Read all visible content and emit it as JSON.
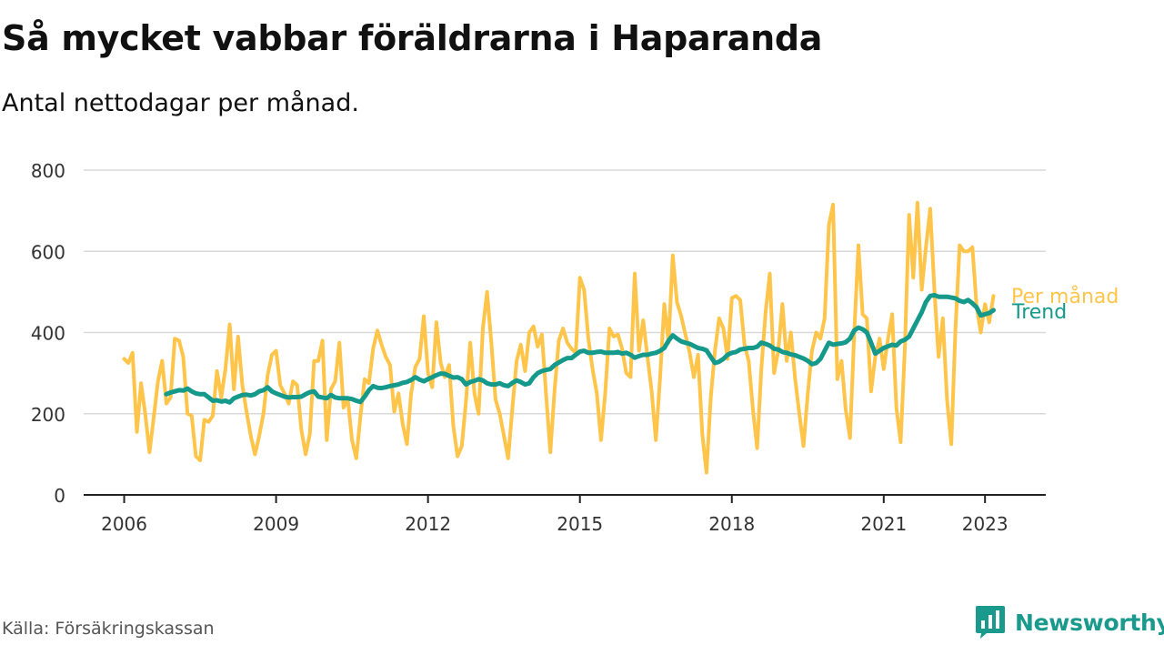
{
  "header": {
    "title": "Så mycket vabbar föräldrarna i Haparanda",
    "subtitle": "Antal nettodagar per månad."
  },
  "footer": {
    "source": "Källa: Försäkringskassan",
    "brand": "Newsworthy"
  },
  "colors": {
    "monthly": "#ffc54a",
    "trend": "#14998b",
    "grid": "#d9d9d9",
    "axis": "#222222",
    "brand": "#1a9a8c"
  },
  "icons": {
    "brand_logo": "bar-chart-speech-bubble-icon"
  },
  "chart_data": {
    "type": "line",
    "xlabel": "",
    "ylabel": "",
    "xlim": [
      2005.2,
      2024.2
    ],
    "ylim": [
      0,
      800
    ],
    "yticks": [
      0,
      200,
      400,
      600,
      800
    ],
    "yticklabels": [
      "0",
      "200",
      "400",
      "600",
      "800"
    ],
    "xticks": [
      2006,
      2009,
      2012,
      2015,
      2018,
      2021,
      2023
    ],
    "xticklabels": [
      "2006",
      "2009",
      "2012",
      "2015",
      "2018",
      "2021",
      "2023"
    ],
    "grid": true,
    "series": [
      {
        "name": "Per månad",
        "start": 2006.0,
        "step_months": 1,
        "values": [
          335,
          325,
          350,
          155,
          275,
          200,
          105,
          190,
          280,
          330,
          225,
          240,
          385,
          380,
          340,
          200,
          195,
          95,
          85,
          185,
          180,
          195,
          305,
          240,
          310,
          420,
          260,
          390,
          270,
          205,
          145,
          100,
          145,
          200,
          295,
          345,
          355,
          270,
          250,
          225,
          280,
          270,
          160,
          100,
          150,
          330,
          330,
          380,
          135,
          260,
          280,
          375,
          215,
          235,
          135,
          90,
          195,
          285,
          275,
          360,
          405,
          370,
          340,
          320,
          205,
          250,
          175,
          125,
          250,
          315,
          335,
          440,
          300,
          265,
          425,
          325,
          290,
          320,
          170,
          95,
          120,
          230,
          375,
          250,
          200,
          410,
          500,
          375,
          235,
          200,
          145,
          90,
          215,
          330,
          370,
          305,
          400,
          415,
          365,
          395,
          245,
          105,
          260,
          380,
          410,
          375,
          360,
          350,
          535,
          505,
          385,
          310,
          250,
          135,
          250,
          410,
          390,
          395,
          360,
          300,
          290,
          545,
          355,
          430,
          340,
          255,
          135,
          290,
          470,
          375,
          590,
          475,
          440,
          395,
          350,
          290,
          345,
          150,
          55,
          240,
          355,
          435,
          410,
          335,
          485,
          490,
          480,
          370,
          330,
          210,
          115,
          310,
          450,
          545,
          300,
          355,
          470,
          330,
          400,
          285,
          200,
          120,
          250,
          355,
          400,
          385,
          435,
          665,
          715,
          285,
          330,
          210,
          140,
          395,
          615,
          445,
          435,
          255,
          340,
          385,
          310,
          385,
          445,
          215,
          130,
          360,
          690,
          535,
          720,
          505,
          610,
          705,
          505,
          340,
          435,
          235,
          125,
          410,
          615,
          600,
          600,
          610,
          465,
          400,
          470,
          425,
          490
        ]
      },
      {
        "name": "Trend",
        "start": 2006.8333,
        "step_months": 1,
        "values": [
          248,
          252,
          255,
          258,
          257,
          262,
          255,
          250,
          248,
          248,
          240,
          232,
          233,
          230,
          232,
          228,
          238,
          242,
          246,
          247,
          245,
          248,
          255,
          258,
          265,
          255,
          250,
          246,
          242,
          240,
          241,
          241,
          242,
          248,
          253,
          255,
          242,
          240,
          238,
          246,
          240,
          238,
          238,
          238,
          236,
          232,
          229,
          242,
          258,
          268,
          264,
          263,
          265,
          268,
          270,
          272,
          276,
          278,
          283,
          290,
          284,
          280,
          285,
          290,
          295,
          299,
          298,
          293,
          289,
          290,
          285,
          272,
          278,
          281,
          285,
          282,
          275,
          272,
          272,
          275,
          270,
          268,
          276,
          282,
          278,
          272,
          275,
          290,
          300,
          305,
          308,
          310,
          320,
          326,
          332,
          337,
          337,
          345,
          353,
          355,
          350,
          350,
          352,
          353,
          350,
          350,
          350,
          352,
          348,
          350,
          345,
          338,
          342,
          345,
          345,
          348,
          350,
          355,
          362,
          380,
          393,
          385,
          378,
          375,
          372,
          367,
          362,
          360,
          356,
          340,
          325,
          328,
          335,
          345,
          350,
          352,
          358,
          360,
          362,
          362,
          365,
          375,
          372,
          368,
          360,
          358,
          352,
          350,
          346,
          344,
          340,
          336,
          330,
          322,
          325,
          335,
          355,
          375,
          370,
          372,
          373,
          376,
          385,
          405,
          412,
          408,
          400,
          375,
          348,
          355,
          362,
          366,
          370,
          368,
          378,
          382,
          390,
          410,
          430,
          450,
          475,
          490,
          492,
          488,
          488,
          488,
          486,
          484,
          478,
          475,
          480,
          472,
          462,
          442,
          445,
          448,
          455
        ]
      }
    ],
    "labels": {
      "monthly": "Per månad",
      "trend": "Trend"
    }
  }
}
